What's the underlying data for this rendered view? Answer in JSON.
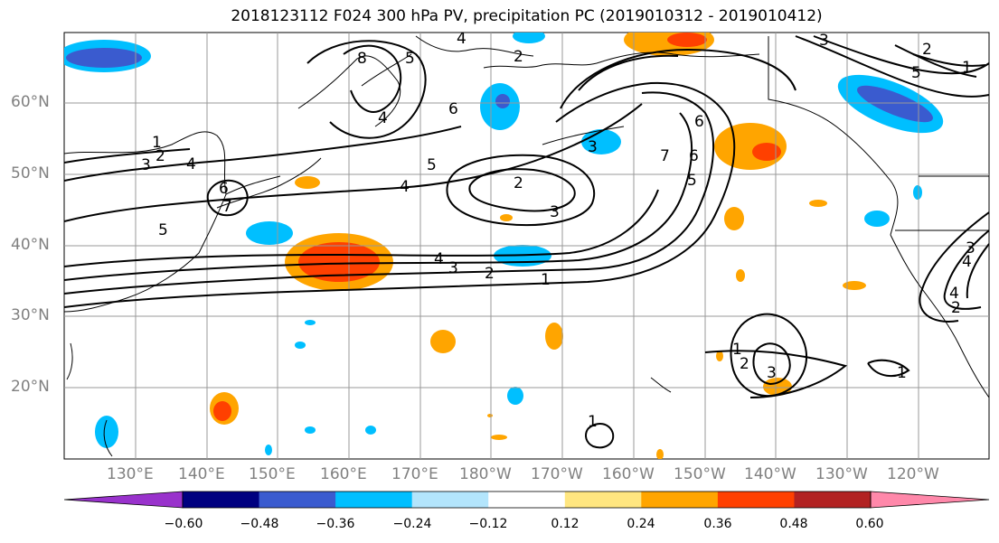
{
  "title": "2018123112 F024 300 hPa PV, precipitation PC (2019010312 - 2019010412)",
  "lat_labels": [
    "60°N",
    "50°N",
    "40°N",
    "30°N",
    "20°N"
  ],
  "lon_labels": [
    "130°E",
    "140°E",
    "150°E",
    "160°E",
    "170°E",
    "180°W",
    "170°W",
    "160°W",
    "150°W",
    "140°W",
    "130°W",
    "120°W"
  ],
  "colorbar": {
    "colors": [
      "#9932cc",
      "#000080",
      "#3a5bcf",
      "#00bfff",
      "#b3e5fc",
      "#ffffff",
      "#ffe680",
      "#ffa500",
      "#ff4000",
      "#b22222",
      "#ff88aa"
    ],
    "tick_labels": [
      "−0.60",
      "−0.48",
      "−0.36",
      "−0.24",
      "−0.12",
      "0.12",
      "0.24",
      "0.36",
      "0.48",
      "0.60"
    ]
  },
  "contour_labels": [
    "1",
    "2",
    "3",
    "4",
    "5",
    "6",
    "7",
    "8",
    "2",
    "3",
    "4",
    "5",
    "1",
    "2",
    "3",
    "4",
    "5",
    "6",
    "4",
    "2",
    "3",
    "4",
    "3",
    "2",
    "1",
    "4",
    "5",
    "6",
    "7",
    "6",
    "5",
    "1",
    "2",
    "3",
    "1",
    "1",
    "4",
    "2",
    "3"
  ]
}
